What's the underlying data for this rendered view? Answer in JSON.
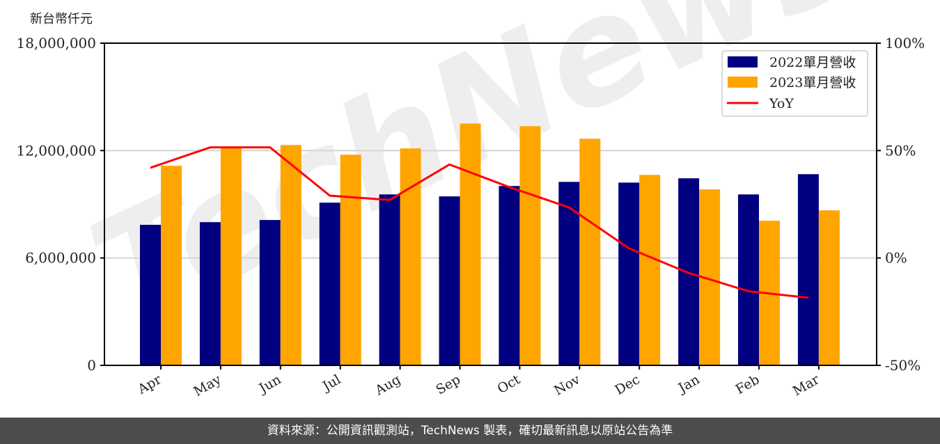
{
  "unit_label": "新台幣仟元",
  "footer": {
    "source_text": "資料來源：公開資訊觀測站，TechNews 製表，確切最新訊息以原站公告為準"
  },
  "watermark": "TechNews",
  "colors": {
    "series_2022": "#000080",
    "series_2023": "#FFA500",
    "yoy": "#FF0000",
    "grid": "#d3d3d3",
    "footer_bg": "#4d4d4d"
  },
  "chart_data": {
    "type": "bar",
    "title": "",
    "xlabel": "",
    "ylabel": "新台幣仟元",
    "y2label": "",
    "categories": [
      "Apr",
      "May",
      "Jun",
      "Jul",
      "Aug",
      "Sep",
      "Oct",
      "Nov",
      "Dec",
      "Jan",
      "Feb",
      "Mar"
    ],
    "series": [
      {
        "name": "2022單月營收",
        "type": "bar",
        "axis": "left",
        "color": "#000080",
        "values": [
          7850000,
          8000000,
          8120000,
          9090000,
          9550000,
          9440000,
          10020000,
          10250000,
          10210000,
          10450000,
          9550000,
          10680000
        ]
      },
      {
        "name": "2023單月營收",
        "type": "bar",
        "axis": "left",
        "color": "#FFA500",
        "values": [
          11150000,
          12150000,
          12310000,
          11770000,
          12120000,
          13510000,
          13360000,
          12660000,
          10640000,
          9830000,
          8080000,
          8660000
        ]
      },
      {
        "name": "YoY",
        "type": "line",
        "axis": "right",
        "color": "#FF0000",
        "values": [
          42.0,
          51.5,
          51.5,
          29.0,
          27.0,
          43.5,
          33.0,
          23.5,
          4.5,
          -7.0,
          -15.5,
          -18.5
        ]
      }
    ],
    "ylim": [
      0,
      18000000
    ],
    "yticks": [
      0,
      6000000,
      12000000,
      18000000
    ],
    "ytick_labels": [
      "0",
      "6,000,000",
      "12,000,000",
      "18,000,000"
    ],
    "y2lim": [
      -50,
      100
    ],
    "y2ticks": [
      -50,
      0,
      50,
      100
    ],
    "y2tick_labels": [
      "-50%",
      "0%",
      "50%",
      "100%"
    ],
    "grid": true,
    "legend_position": "upper right",
    "legend": [
      "2022單月營收",
      "2023單月營收",
      "YoY"
    ]
  }
}
